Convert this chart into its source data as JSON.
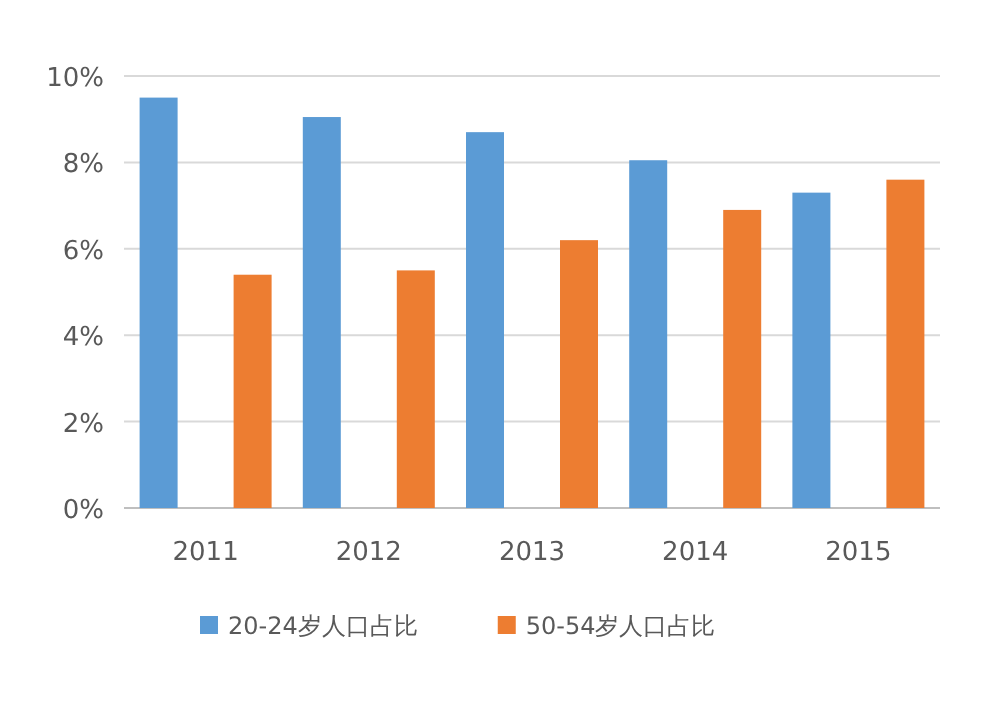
{
  "chart_data": {
    "type": "bar",
    "categories": [
      "2011",
      "2012",
      "2013",
      "2014",
      "2015"
    ],
    "series": [
      {
        "name": "20-24岁人口占比",
        "color": "#5b9bd5",
        "values": [
          9.5,
          9.05,
          8.7,
          8.05,
          7.3
        ]
      },
      {
        "name": "50-54岁人口占比",
        "color": "#ed7d31",
        "values": [
          5.4,
          5.5,
          6.2,
          6.9,
          7.6
        ]
      }
    ],
    "ylim": [
      0,
      10
    ],
    "yticks": [
      {
        "value": 0,
        "label": "0%"
      },
      {
        "value": 2,
        "label": "2%"
      },
      {
        "value": 4,
        "label": "4%"
      },
      {
        "value": 6,
        "label": "6%"
      },
      {
        "value": 8,
        "label": "8%"
      },
      {
        "value": 10,
        "label": "10%"
      }
    ],
    "grid": "y",
    "legend": "bottom"
  }
}
